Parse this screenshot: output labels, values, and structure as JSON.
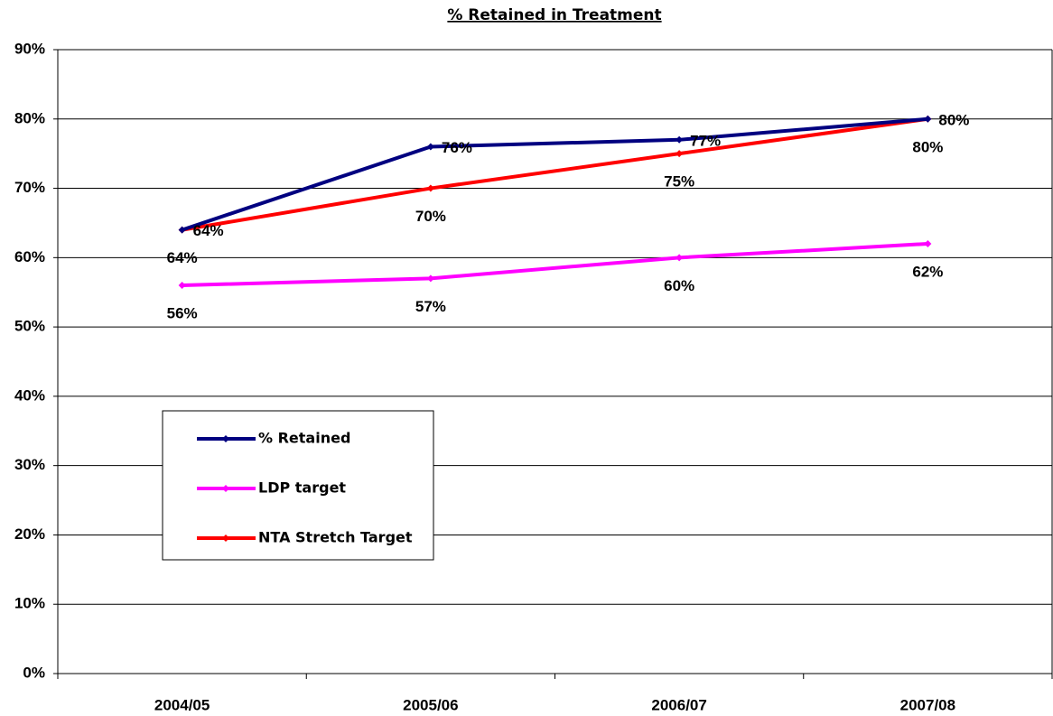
{
  "chart_data": {
    "type": "line",
    "title": "% Retained in Treatment",
    "categories": [
      "2004/05",
      "2005/06",
      "2006/07",
      "2007/08"
    ],
    "series": [
      {
        "name": "% Retained",
        "color": "#000080",
        "values": [
          64,
          76,
          77,
          80
        ],
        "value_labels": [
          "64%",
          "76%",
          "77%",
          "80%"
        ]
      },
      {
        "name": "LDP target",
        "color": "#ff00ff",
        "values": [
          56,
          57,
          60,
          62
        ],
        "value_labels": [
          "56%",
          "57%",
          "60%",
          "62%"
        ]
      },
      {
        "name": "NTA Stretch Target",
        "color": "#ff0000",
        "values": [
          64,
          70,
          75,
          80
        ],
        "value_labels": [
          "64%",
          "70%",
          "75%",
          "80%"
        ]
      }
    ],
    "ylim": [
      0,
      90
    ],
    "yticks": [
      {
        "value": 0,
        "label": "0%"
      },
      {
        "value": 10,
        "label": "10%"
      },
      {
        "value": 20,
        "label": "20%"
      },
      {
        "value": 30,
        "label": "30%"
      },
      {
        "value": 40,
        "label": "40%"
      },
      {
        "value": 50,
        "label": "50%"
      },
      {
        "value": 60,
        "label": "60%"
      },
      {
        "value": 70,
        "label": "70%"
      },
      {
        "value": 80,
        "label": "80%"
      },
      {
        "value": 90,
        "label": "90%"
      }
    ],
    "grid": true
  }
}
